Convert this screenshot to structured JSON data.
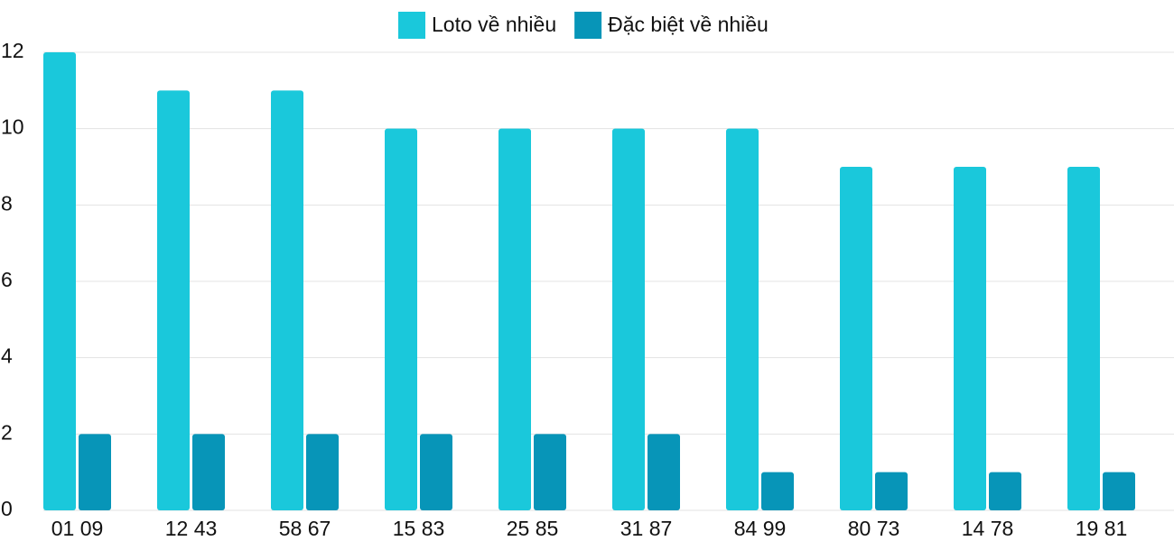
{
  "chart_data": {
    "type": "bar",
    "categories": [
      "01 09",
      "12 43",
      "58 67",
      "15 83",
      "25 85",
      "31 87",
      "84 99",
      "80 73",
      "14 78",
      "19 81"
    ],
    "series": [
      {
        "name": "Loto về nhiều",
        "color": "#1ac8db",
        "values": [
          12,
          11,
          11,
          10,
          10,
          10,
          10,
          9,
          9,
          9
        ]
      },
      {
        "name": "Đặc biệt về nhiều",
        "color": "#0795b8",
        "values": [
          2,
          2,
          2,
          2,
          2,
          2,
          1,
          1,
          1,
          1
        ]
      }
    ],
    "ylim": [
      0,
      12
    ],
    "yticks": [
      0,
      2,
      4,
      6,
      8,
      10,
      12
    ],
    "grid": true,
    "legend": "top"
  }
}
